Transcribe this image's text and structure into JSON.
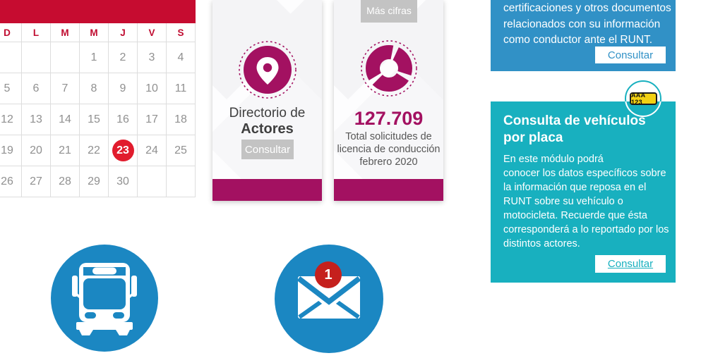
{
  "calendar": {
    "day_headers": [
      "D",
      "L",
      "M",
      "M",
      "J",
      "V",
      "S"
    ],
    "weeks": [
      [
        "",
        "",
        "",
        "1",
        "2",
        "3",
        "4"
      ],
      [
        "5",
        "6",
        "7",
        "8",
        "9",
        "10",
        "11"
      ],
      [
        "12",
        "13",
        "14",
        "15",
        "16",
        "17",
        "18"
      ],
      [
        "19",
        "20",
        "21",
        "22",
        "23",
        "24",
        "25"
      ],
      [
        "26",
        "27",
        "28",
        "29",
        "30",
        "",
        ""
      ]
    ],
    "selected_day": "23"
  },
  "cards": {
    "directorio": {
      "title_lines": [
        "Directorio de",
        "Actores"
      ],
      "button_label": "Consultar",
      "icon": "location-pin-icon"
    },
    "cifras": {
      "top_button_label": "Más cifras",
      "value": "127.709",
      "caption_lines": [
        "Total solicitudes de",
        "licencia de conducción",
        "febrero 2020"
      ],
      "icon": "donut-chart-icon"
    }
  },
  "panels": {
    "conductor": {
      "text_lines": [
        "certificaciones y otros documentos",
        "relacionados con su información",
        "como conductor ante el RUNT."
      ],
      "button_label": "Consultar"
    },
    "vehiculos": {
      "title_lines": [
        "Consulta de vehículos",
        "por placa"
      ],
      "body_lines": [
        "En este módulo podrá",
        "conocer los datos específicos sobre",
        "la información que reposa en el",
        "RUNT sobre su vehículo o",
        "motocicleta. Recuerde que ésta",
        "corresponderá a lo reportado por los",
        "distintos actores."
      ],
      "button_label": "Consultar",
      "license_plate_text": "AAA 123"
    }
  },
  "shortcuts": {
    "mail_badge_count": "1"
  },
  "colors": {
    "calendar_header_red": "#c60c30",
    "selected_day_red": "#e11c2d",
    "magenta_accent": "#a31161",
    "gray_button": "#c3c3c3",
    "blue_panel": "#3191c6",
    "teal_panel": "#18b0bf",
    "circle_blue": "#1b87c2",
    "badge_red": "#c5201d",
    "plate_yellow": "#f2d113"
  }
}
